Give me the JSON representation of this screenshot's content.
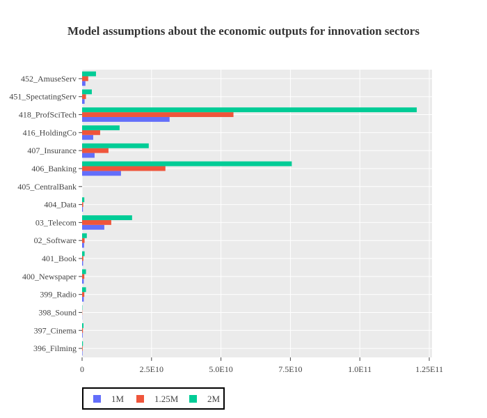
{
  "chart_data": {
    "type": "bar",
    "orientation": "horizontal",
    "title": "Model assumptions about the economic outputs for innovation sectors",
    "xlabel": "",
    "ylabel": "",
    "xlim": [
      0,
      126000000000
    ],
    "x_ticks": [
      0,
      25000000000,
      50000000000,
      75000000000,
      100000000000,
      125000000000
    ],
    "x_tick_labels": [
      "0",
      "2.5E10",
      "5.0E10",
      "7.5E10",
      "1.0E11",
      "1.25E11"
    ],
    "grid": true,
    "categories": [
      "396_Filming",
      "397_Cinema",
      "398_Sound",
      "399_Radio",
      "400_Newspaper",
      "401_Book",
      "02_Software",
      "03_Telecom",
      "404_Data",
      "405_CentralBank",
      "406_Banking",
      "407_Insurance",
      "416_HoldingCo",
      "418_ProfSciTech",
      "451_SpectatingServ",
      "452_AmuseServ"
    ],
    "series": [
      {
        "name": "1M",
        "color": "#636efa",
        "values": [
          150000000,
          200000000,
          50000000,
          600000000,
          600000000,
          350000000,
          700000000,
          8000000000,
          300000000,
          0,
          14000000000,
          4500000000,
          4000000000,
          31500000000,
          900000000,
          1200000000
        ]
      },
      {
        "name": "1.25M",
        "color": "#ef553b",
        "values": [
          200000000,
          300000000,
          70000000,
          800000000,
          800000000,
          450000000,
          900000000,
          10500000000,
          400000000,
          0,
          30000000000,
          9500000000,
          6500000000,
          54500000000,
          1400000000,
          2200000000
        ]
      },
      {
        "name": "2M",
        "color": "#00cc96",
        "values": [
          300000000,
          500000000,
          100000000,
          1400000000,
          1400000000,
          900000000,
          1700000000,
          18000000000,
          800000000,
          0,
          75500000000,
          24000000000,
          13500000000,
          120500000000,
          3500000000,
          5000000000
        ]
      }
    ],
    "legend_position": "bottom-left"
  },
  "colors": {
    "plot_background": "#ebebeb",
    "gridline": "#ffffff",
    "legend_border": "#000000"
  }
}
